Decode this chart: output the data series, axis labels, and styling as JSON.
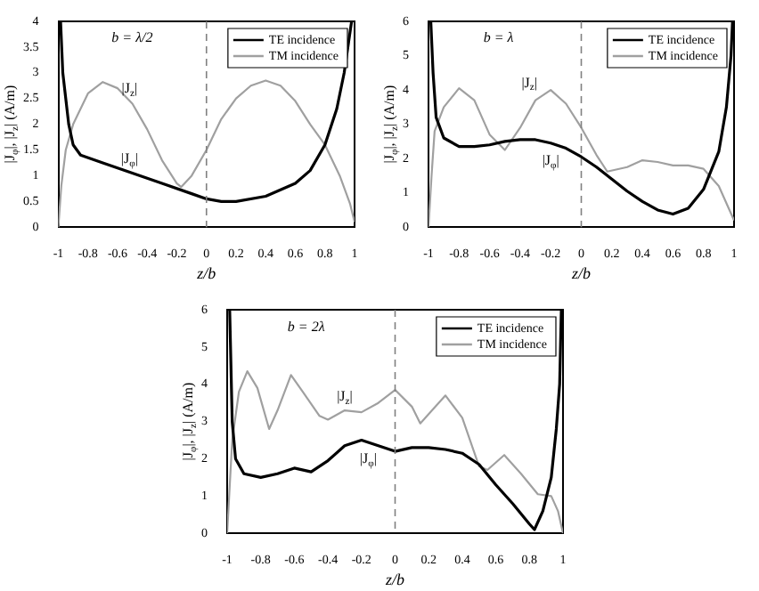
{
  "chart_data": [
    {
      "type": "line",
      "xlabel": "z/b",
      "ylabel": "|J$_{φ}$|, |J$_{z}$| (A/m)",
      "xlim": [
        -1,
        1
      ],
      "xticks": [
        -1,
        -0.8,
        -0.6,
        -0.4,
        -0.2,
        0,
        0.2,
        0.4,
        0.6,
        0.8,
        1
      ],
      "ylim": [
        0,
        4
      ],
      "yticks": [
        0,
        0.5,
        1,
        1.5,
        2,
        2.5,
        3,
        3.5,
        4
      ],
      "grid": false,
      "legend": "top right",
      "marker": "none",
      "series": [
        {
          "name": "TE incidence",
          "color": "#000000",
          "x": [
            -0.985,
            -0.97,
            -0.93,
            -0.9,
            -0.85,
            -0.7,
            -0.5,
            -0.3,
            -0.1,
            0,
            0.1,
            0.2,
            0.4,
            0.6,
            0.7,
            0.8,
            0.88,
            0.93,
            0.96,
            0.98
          ],
          "values": [
            4,
            3,
            2,
            1.6,
            1.4,
            1.25,
            1.05,
            0.85,
            0.65,
            0.55,
            0.5,
            0.5,
            0.6,
            0.85,
            1.1,
            1.6,
            2.3,
            3,
            3.6,
            4
          ]
        },
        {
          "name": "TM incidence",
          "color": "#a0a0a0",
          "x": [
            -1,
            -0.98,
            -0.95,
            -0.9,
            -0.8,
            -0.7,
            -0.6,
            -0.5,
            -0.4,
            -0.3,
            -0.2,
            -0.17,
            -0.1,
            0,
            0.1,
            0.2,
            0.3,
            0.4,
            0.5,
            0.6,
            0.7,
            0.8,
            0.9,
            0.97,
            1
          ],
          "values": [
            0,
            0.8,
            1.5,
            2,
            2.6,
            2.82,
            2.7,
            2.4,
            1.9,
            1.3,
            0.85,
            0.78,
            1,
            1.5,
            2.1,
            2.5,
            2.75,
            2.85,
            2.75,
            2.45,
            2,
            1.6,
            1,
            0.45,
            0.1
          ]
        }
      ],
      "ref_lines": [
        {
          "axis": "x",
          "value": 0,
          "color": "#808080",
          "line_style": "dashed"
        }
      ],
      "annotations": [
        "b = λ/2",
        "|J$_{z}$|",
        "|J$_{φ}$|"
      ]
    },
    {
      "type": "line",
      "xlabel": "z/b",
      "ylabel": "|J$_{φ}$|, |J$_{z}$| (A/m)",
      "xlim": [
        -1,
        1
      ],
      "xticks": [
        -1,
        -0.8,
        -0.6,
        -0.4,
        -0.2,
        0,
        0.2,
        0.4,
        0.6,
        0.8,
        1
      ],
      "ylim": [
        0,
        6
      ],
      "yticks": [
        0,
        1,
        2,
        3,
        4,
        5,
        6
      ],
      "grid": false,
      "legend": "top right",
      "marker": "none",
      "series": [
        {
          "name": "TE incidence",
          "color": "#000000",
          "x": [
            -0.985,
            -0.97,
            -0.95,
            -0.9,
            -0.8,
            -0.7,
            -0.6,
            -0.5,
            -0.4,
            -0.3,
            -0.2,
            -0.1,
            0,
            0.1,
            0.2,
            0.3,
            0.4,
            0.5,
            0.6,
            0.7,
            0.8,
            0.9,
            0.95,
            0.98,
            0.99
          ],
          "values": [
            6,
            4.5,
            3.2,
            2.6,
            2.35,
            2.35,
            2.4,
            2.5,
            2.55,
            2.55,
            2.45,
            2.3,
            2.05,
            1.75,
            1.4,
            1.05,
            0.75,
            0.5,
            0.38,
            0.55,
            1.1,
            2.2,
            3.5,
            5,
            6
          ]
        },
        {
          "name": "TM incidence",
          "color": "#a0a0a0",
          "x": [
            -1,
            -0.98,
            -0.96,
            -0.9,
            -0.8,
            -0.7,
            -0.6,
            -0.5,
            -0.4,
            -0.3,
            -0.2,
            -0.1,
            0,
            0.1,
            0.17,
            0.3,
            0.4,
            0.5,
            0.6,
            0.7,
            0.8,
            0.9,
            0.97,
            1
          ],
          "values": [
            0,
            1.5,
            2.8,
            3.5,
            4.05,
            3.7,
            2.7,
            2.25,
            2.9,
            3.7,
            4,
            3.6,
            2.9,
            2.1,
            1.62,
            1.75,
            1.95,
            1.9,
            1.8,
            1.8,
            1.7,
            1.2,
            0.5,
            0.2
          ]
        }
      ],
      "ref_lines": [
        {
          "axis": "x",
          "value": 0,
          "color": "#808080",
          "line_style": "dashed"
        }
      ],
      "annotations": [
        "b = λ",
        "|J$_{z}$|",
        "|J$_{φ}$|"
      ]
    },
    {
      "type": "line",
      "xlabel": "z/b",
      "ylabel": "|J$_{φ}$|, |J$_{z}$| (A/m)",
      "xlim": [
        -1,
        1
      ],
      "xticks": [
        -1,
        -0.8,
        -0.6,
        -0.4,
        -0.2,
        0,
        0.2,
        0.4,
        0.6,
        0.8,
        1
      ],
      "ylim": [
        0,
        6
      ],
      "yticks": [
        0,
        1,
        2,
        3,
        4,
        5,
        6
      ],
      "grid": false,
      "legend": "top right",
      "marker": "none",
      "series": [
        {
          "name": "TE incidence",
          "color": "#000000",
          "x": [
            -0.985,
            -0.97,
            -0.95,
            -0.9,
            -0.8,
            -0.7,
            -0.6,
            -0.5,
            -0.4,
            -0.3,
            -0.2,
            -0.1,
            0,
            0.1,
            0.2,
            0.3,
            0.4,
            0.5,
            0.6,
            0.7,
            0.8,
            0.83,
            0.88,
            0.93,
            0.96,
            0.98,
            0.99
          ],
          "values": [
            6,
            3,
            2,
            1.6,
            1.5,
            1.6,
            1.75,
            1.65,
            1.95,
            2.35,
            2.5,
            2.35,
            2.2,
            2.3,
            2.3,
            2.25,
            2.15,
            1.85,
            1.3,
            0.8,
            0.25,
            0.1,
            0.6,
            1.5,
            2.8,
            4,
            6
          ]
        },
        {
          "name": "TM incidence",
          "color": "#a0a0a0",
          "x": [
            -1,
            -0.97,
            -0.93,
            -0.88,
            -0.82,
            -0.75,
            -0.7,
            -0.62,
            -0.55,
            -0.45,
            -0.4,
            -0.3,
            -0.2,
            -0.1,
            0,
            0.1,
            0.15,
            0.22,
            0.3,
            0.4,
            0.5,
            0.55,
            0.65,
            0.75,
            0.85,
            0.93,
            0.97,
            1
          ],
          "values": [
            0,
            2.5,
            3.8,
            4.35,
            3.9,
            2.8,
            3.3,
            4.25,
            3.8,
            3.15,
            3.05,
            3.3,
            3.25,
            3.5,
            3.85,
            3.4,
            2.95,
            3.3,
            3.7,
            3.1,
            1.8,
            1.7,
            2.1,
            1.6,
            1.05,
            1,
            0.6,
            0
          ]
        }
      ],
      "ref_lines": [
        {
          "axis": "x",
          "value": 0,
          "color": "#808080",
          "line_style": "dashed"
        }
      ],
      "annotations": [
        "b = 2λ",
        "|J$_{z}$|",
        "|J$_{φ}$|"
      ]
    }
  ]
}
